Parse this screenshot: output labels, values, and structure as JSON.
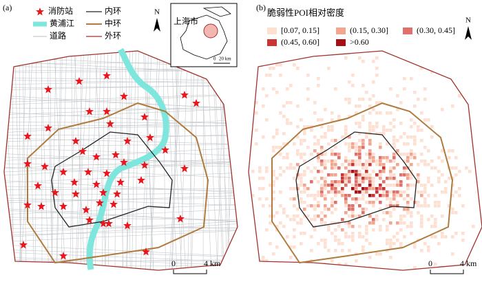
{
  "panel_a": {
    "label": "(a)",
    "legend": [
      {
        "label": "消防站"
      },
      {
        "label": "内环"
      },
      {
        "label": "黄浦江"
      },
      {
        "label": "中环"
      },
      {
        "label": "道路"
      },
      {
        "label": "外环"
      }
    ],
    "north": "N",
    "inset": {
      "title": "上海市",
      "scale_start": "0",
      "scale_end": "20 km"
    },
    "scale_bar": {
      "start": "0",
      "end": "4 km"
    }
  },
  "panel_b": {
    "label": "(b)",
    "legend_title": "脆弱性POI相对密度",
    "legend": [
      {
        "label": "[0.07, 0.15]",
        "color": "#fde0d2"
      },
      {
        "label": "(0.15, 0.30]",
        "color": "#f2a58f"
      },
      {
        "label": "(0.30, 0.45]",
        "color": "#e0706a"
      },
      {
        "label": "(0.45, 0.60]",
        "color": "#cc3333"
      },
      {
        "label": ">0.60",
        "color": "#a50f15"
      }
    ],
    "north": "N",
    "scale_bar": {
      "start": "0",
      "end": "4 km"
    }
  }
}
